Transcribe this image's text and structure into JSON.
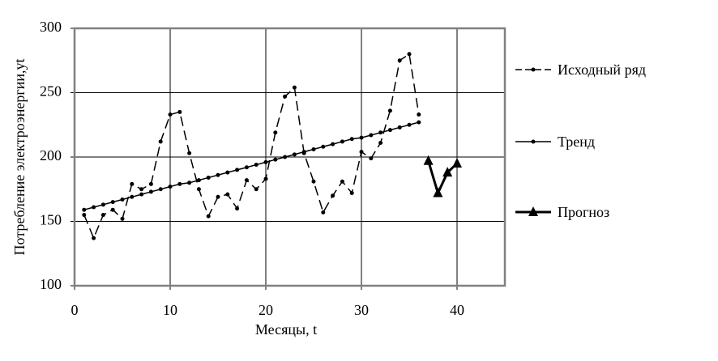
{
  "chart_data": {
    "type": "line",
    "xlabel": "Месяцы,  t",
    "ylabel": "Потребление электроэнергии,yt",
    "xlim": [
      0,
      45
    ],
    "ylim": [
      100,
      300
    ],
    "xticks": [
      0,
      10,
      20,
      30,
      40
    ],
    "yticks": [
      100,
      150,
      200,
      250,
      300
    ],
    "grid": true,
    "legend": "right",
    "series": [
      {
        "name": "Исходный ряд",
        "color": "#000000",
        "style": "dashed",
        "marker": "circle",
        "x": [
          1,
          2,
          3,
          4,
          5,
          6,
          7,
          8,
          9,
          10,
          11,
          12,
          13,
          14,
          15,
          16,
          17,
          18,
          19,
          20,
          21,
          22,
          23,
          24,
          25,
          26,
          27,
          28,
          29,
          30,
          31,
          32,
          33,
          34,
          35,
          36
        ],
        "values": [
          155,
          137,
          155,
          159,
          152,
          179,
          175,
          179,
          212,
          233,
          235,
          203,
          175,
          154,
          169,
          171,
          160,
          182,
          175,
          183,
          219,
          247,
          254,
          203,
          181,
          157,
          170,
          181,
          172,
          204,
          199,
          211,
          236,
          275,
          280,
          233
        ]
      },
      {
        "name": "Тренд",
        "color": "#000000",
        "style": "solid",
        "marker": "circle",
        "x": [
          1,
          2,
          3,
          4,
          5,
          6,
          7,
          8,
          9,
          10,
          11,
          12,
          13,
          14,
          15,
          16,
          17,
          18,
          19,
          20,
          21,
          22,
          23,
          24,
          25,
          26,
          27,
          28,
          29,
          30,
          31,
          32,
          33,
          34,
          35,
          36
        ],
        "values": [
          159,
          161,
          163,
          165,
          167,
          169,
          171,
          173,
          175,
          177,
          179,
          180,
          182,
          184,
          186,
          188,
          190,
          192,
          194,
          196,
          198,
          200,
          202,
          204,
          206,
          208,
          210,
          212,
          214,
          215,
          217,
          219,
          221,
          223,
          225,
          227
        ]
      },
      {
        "name": "Прогноз",
        "color": "#000000",
        "style": "bold",
        "marker": "triangle",
        "x": [
          37,
          38,
          39,
          40
        ],
        "values": [
          197,
          172,
          188,
          195
        ]
      }
    ]
  }
}
